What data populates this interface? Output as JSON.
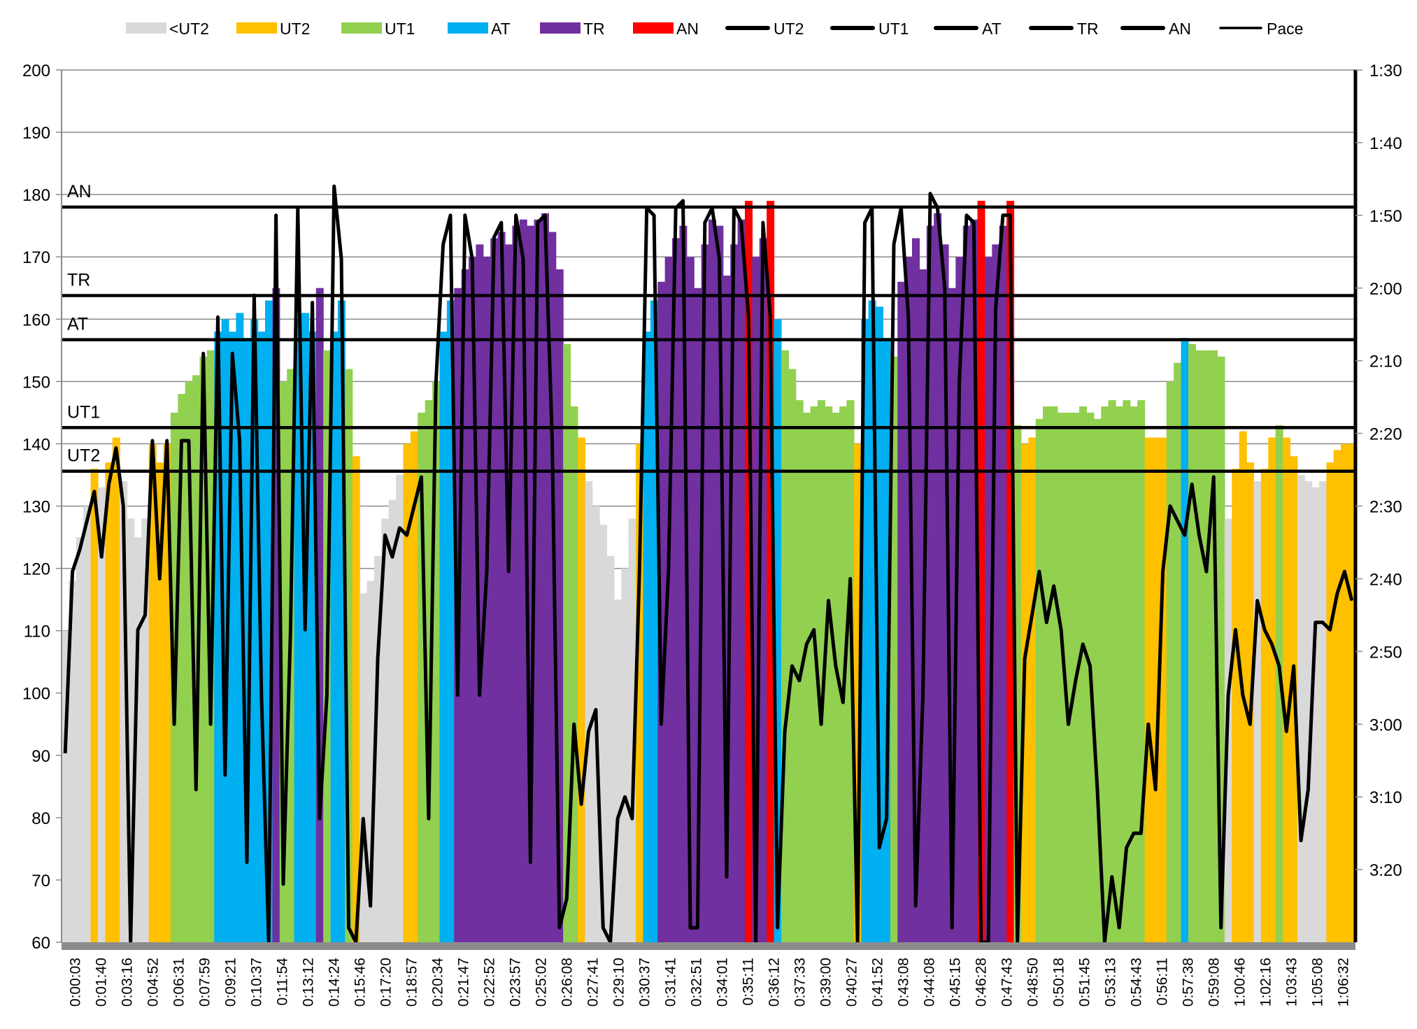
{
  "chart_data": {
    "type": "bar",
    "title": "",
    "legend": {
      "placement": "top",
      "entries": [
        {
          "label": "<UT2",
          "kind": "swatch",
          "color": "#d9d9d9"
        },
        {
          "label": "UT2",
          "kind": "swatch",
          "color": "#ffc000"
        },
        {
          "label": "UT1",
          "kind": "swatch",
          "color": "#92d050"
        },
        {
          "label": "AT",
          "kind": "swatch",
          "color": "#00b0f0"
        },
        {
          "label": "TR",
          "kind": "swatch",
          "color": "#7030a0"
        },
        {
          "label": "AN",
          "kind": "swatch",
          "color": "#ff0000"
        },
        {
          "label": "UT2",
          "kind": "line",
          "color": "#000000"
        },
        {
          "label": "UT1",
          "kind": "line",
          "color": "#000000"
        },
        {
          "label": "AT",
          "kind": "line",
          "color": "#000000"
        },
        {
          "label": "TR",
          "kind": "line",
          "color": "#000000"
        },
        {
          "label": "AN",
          "kind": "line",
          "color": "#000000"
        },
        {
          "label": "Pace",
          "kind": "thinline",
          "color": "#000000"
        }
      ]
    },
    "y_left": {
      "label": "",
      "ylim": [
        60,
        200
      ],
      "ticks": [
        60,
        70,
        80,
        90,
        100,
        110,
        120,
        130,
        140,
        150,
        160,
        170,
        180,
        190,
        200
      ],
      "grid": true
    },
    "y_right": {
      "label": "",
      "ylim_seconds": [
        90,
        210
      ],
      "inverted": true,
      "tick_labels": [
        "1:30",
        "1:40",
        "1:50",
        "2:00",
        "2:10",
        "2:20",
        "2:30",
        "2:40",
        "2:50",
        "3:00",
        "3:10",
        "3:20"
      ]
    },
    "x_tick_labels": [
      "0:00:03",
      "0:01:40",
      "0:03:16",
      "0:04:52",
      "0:06:31",
      "0:07:59",
      "0:09:21",
      "0:10:37",
      "0:11:54",
      "0:13:12",
      "0:14:24",
      "0:15:46",
      "0:17:20",
      "0:18:57",
      "0:20:34",
      "0:21:47",
      "0:22:52",
      "0:23:57",
      "0:25:02",
      "0:26:08",
      "0:27:41",
      "0:29:10",
      "0:30:37",
      "0:31:41",
      "0:32:51",
      "0:34:01",
      "0:35:11",
      "0:36:12",
      "0:37:33",
      "0:39:00",
      "0:40:27",
      "0:41:52",
      "0:43:08",
      "0:44:08",
      "0:45:15",
      "0:46:28",
      "0:47:43",
      "0:48:50",
      "0:50:18",
      "0:51:45",
      "0:53:13",
      "0:54:43",
      "0:56:11",
      "0:57:38",
      "0:59:08",
      "1:00:46",
      "1:02:16",
      "1:03:43",
      "1:05:08",
      "1:06:32"
    ],
    "thresholds": [
      {
        "label": "AN",
        "value": 178
      },
      {
        "label": "TR",
        "value": 163.8
      },
      {
        "label": "AT",
        "value": 156.7
      },
      {
        "label": "UT1",
        "value": 142.6
      },
      {
        "label": "UT2",
        "value": 135.6
      }
    ],
    "zones": [
      {
        "name": "<UT2",
        "max": 135.6,
        "color": "#d9d9d9"
      },
      {
        "name": "UT2",
        "max": 142.6,
        "color": "#ffc000"
      },
      {
        "name": "UT1",
        "max": 156.7,
        "color": "#92d050"
      },
      {
        "name": "AT",
        "max": 163.8,
        "color": "#00b0f0"
      },
      {
        "name": "TR",
        "max": 178,
        "color": "#7030a0"
      },
      {
        "name": "AN",
        "max": 999,
        "color": "#ff0000"
      }
    ],
    "heart_rate": [
      110,
      118,
      125,
      130,
      136,
      133,
      137,
      141,
      134,
      128,
      125,
      128,
      140,
      137,
      140,
      145,
      148,
      150,
      151,
      154,
      155,
      158,
      160,
      158,
      161,
      157,
      160,
      158,
      163,
      165,
      150,
      152,
      160,
      161,
      158,
      165,
      155,
      158,
      163,
      152,
      138,
      116,
      118,
      122,
      128,
      131,
      135,
      140,
      142,
      145,
      147,
      150,
      158,
      163,
      165,
      168,
      170,
      172,
      170,
      173,
      174,
      172,
      175,
      176,
      175,
      176,
      177,
      174,
      168,
      156,
      146,
      141,
      134,
      130,
      127,
      122,
      115,
      120,
      128,
      140,
      158,
      163,
      166,
      170,
      173,
      175,
      170,
      165,
      172,
      176,
      175,
      167,
      172,
      176,
      179,
      170,
      173,
      179,
      160,
      155,
      152,
      147,
      145,
      146,
      147,
      146,
      145,
      146,
      147,
      140,
      160,
      163,
      162,
      157,
      154,
      166,
      170,
      173,
      168,
      175,
      177,
      172,
      165,
      170,
      175,
      176,
      179,
      170,
      172,
      175,
      179,
      143,
      140,
      141,
      144,
      146,
      146,
      145,
      145,
      145,
      146,
      145,
      144,
      146,
      147,
      146,
      147,
      146,
      147,
      141,
      141,
      141,
      150,
      153,
      157,
      156,
      155,
      155,
      155,
      154,
      128,
      136,
      142,
      137,
      134,
      136,
      141,
      143,
      141,
      138,
      135,
      134,
      133,
      134,
      137,
      139,
      140,
      140
    ],
    "pace_seconds": [
      184,
      159,
      156,
      152,
      148,
      157,
      147,
      142,
      150,
      210,
      167,
      165,
      141,
      160,
      141,
      180,
      141,
      141,
      189,
      129,
      180,
      124,
      187,
      129,
      141,
      199,
      121,
      176,
      210,
      110,
      202,
      167,
      109,
      167,
      122,
      193,
      176,
      106,
      116,
      208,
      210,
      193,
      205,
      171,
      154,
      157,
      153,
      154,
      150,
      146,
      193,
      133,
      114,
      110,
      176,
      110,
      116,
      176,
      159,
      113,
      111,
      159,
      110,
      116,
      199,
      111,
      110,
      141,
      208,
      204,
      180,
      191,
      181,
      178,
      208,
      210,
      193,
      190,
      193,
      159,
      109,
      110,
      180,
      159,
      109,
      108,
      208,
      208,
      111,
      109,
      116,
      201,
      109,
      111,
      124,
      210,
      111,
      124,
      208,
      181,
      172,
      174,
      169,
      167,
      180,
      163,
      172,
      177,
      160,
      210,
      111,
      109,
      197,
      193,
      114,
      109,
      124,
      205,
      176,
      107,
      109,
      120,
      208,
      133,
      110,
      111,
      210,
      210,
      123,
      110,
      110,
      210,
      171,
      165,
      159,
      166,
      161,
      167,
      180,
      174,
      169,
      172,
      189,
      210,
      201,
      208,
      197,
      195,
      195,
      180,
      189,
      159,
      150,
      152,
      154,
      147,
      154,
      159,
      146,
      208,
      176,
      167,
      176,
      180,
      163,
      167,
      169,
      172,
      181,
      172,
      196,
      189,
      166,
      166,
      167,
      162,
      159,
      163
    ]
  }
}
